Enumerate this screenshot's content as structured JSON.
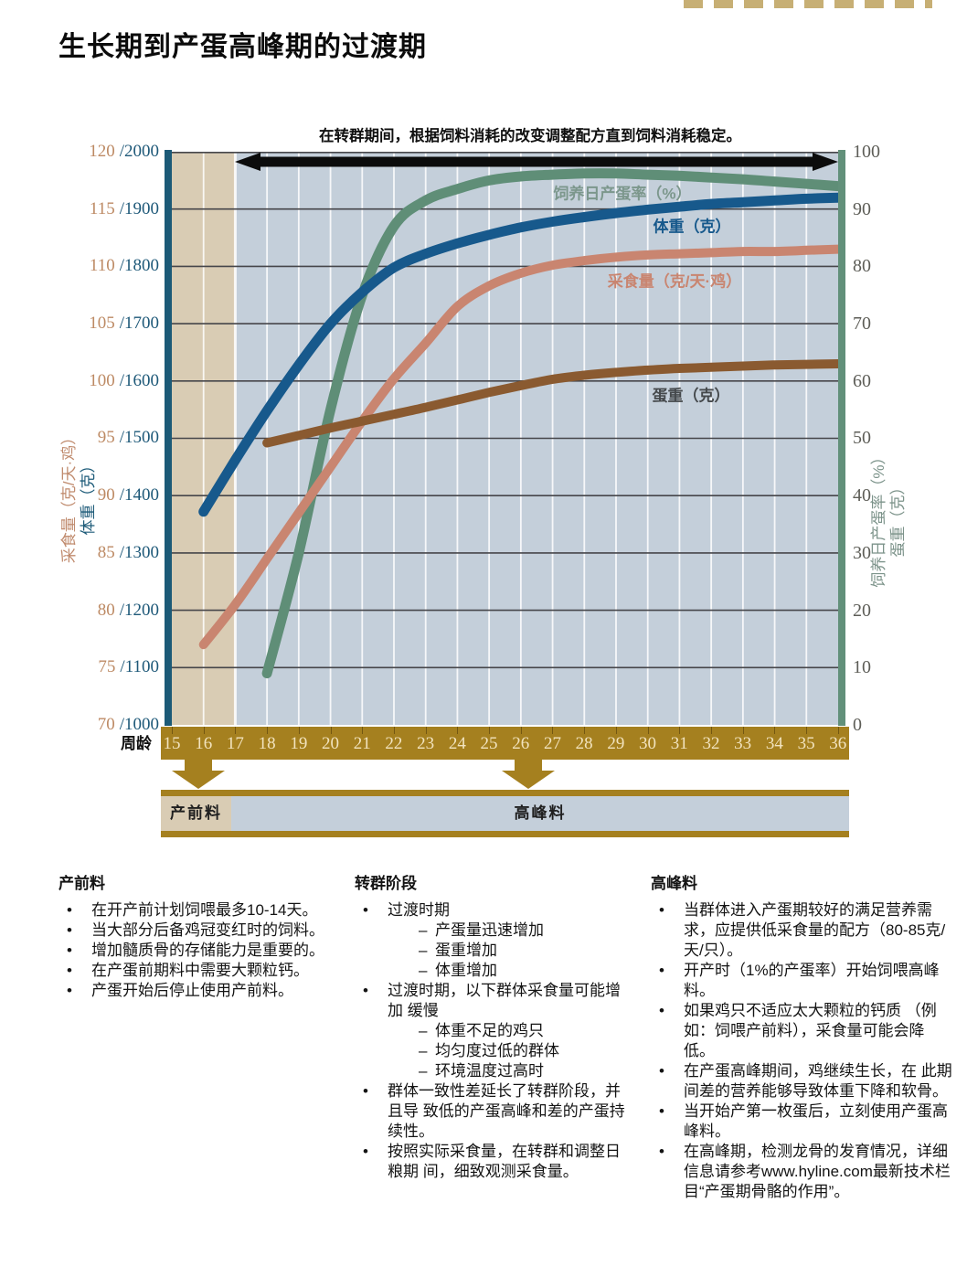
{
  "page": {
    "title": "生长期到产蛋高峰期的过渡期"
  },
  "chart": {
    "annotation": "在转群期间，根据饲料消耗的改变调整配方直到饲料消耗稳定。",
    "x_axis": {
      "label": "周龄"
    },
    "left_axis": {
      "title_feed": "采食量（克/天·鸡）",
      "title_weight": "体重（克）",
      "ticks": [
        {
          "feed": "120",
          "weight": "/2000"
        },
        {
          "feed": "115",
          "weight": "/1900"
        },
        {
          "feed": "110",
          "weight": "/1800"
        },
        {
          "feed": "105",
          "weight": "/1700"
        },
        {
          "feed": "100",
          "weight": "/1600"
        },
        {
          "feed": "95",
          "weight": "/1500"
        },
        {
          "feed": "90",
          "weight": "/1400"
        },
        {
          "feed": "85",
          "weight": "/1300"
        },
        {
          "feed": "80",
          "weight": "/1200"
        },
        {
          "feed": "75",
          "weight": "/1100"
        },
        {
          "feed": "70",
          "weight": "/1000"
        }
      ]
    },
    "right_axis": {
      "title_rate": "饲养日产蛋率（%）",
      "title_egg": "蛋重（克）"
    }
  },
  "chart_data": {
    "type": "line",
    "title": "在转群期间，根据饲料消耗的改变调整配方直到饲料消耗稳定。",
    "x_label": "周龄",
    "x_range": [
      15,
      36
    ],
    "x_ticks": [
      "15",
      "16",
      "17",
      "18",
      "19",
      "20",
      "21",
      "22",
      "23",
      "24",
      "25",
      "26",
      "27",
      "28",
      "29",
      "30",
      "31",
      "32",
      "33",
      "34",
      "35",
      "36"
    ],
    "right_axis": {
      "label": "饲养日产蛋率（%）／蛋重（克）",
      "range": [
        0,
        100
      ],
      "ticks": [
        "100",
        "90",
        "80",
        "70",
        "60",
        "50",
        "40",
        "30",
        "20",
        "10",
        "0"
      ]
    },
    "left_axis": {
      "label": "采食量（克/天·鸡）／体重（克）",
      "feed_range": [
        70,
        120
      ],
      "weight_range": [
        1000,
        2000
      ]
    },
    "grid": true,
    "bands": [
      {
        "label": "产前料",
        "from": 15,
        "to": 17,
        "color": "#d9ccb4"
      },
      {
        "label": "高峰料",
        "from": 17,
        "to": 36,
        "color": "#c4cfda"
      }
    ],
    "series": [
      {
        "name": "饲养日产蛋率（%）",
        "axis": "percent",
        "color": "#5f8e77",
        "width": 11,
        "x": [
          18,
          19,
          20,
          21,
          22,
          23,
          24,
          25,
          26,
          27,
          28,
          29,
          30,
          31,
          32,
          33,
          34,
          35,
          36
        ],
        "values": [
          9,
          30,
          55,
          75,
          87,
          91.5,
          93.5,
          95,
          95.7,
          96,
          96.2,
          96.2,
          96,
          95.8,
          95.5,
          95.2,
          94.8,
          94.4,
          94
        ]
      },
      {
        "name": "体重（克）",
        "axis": "weight",
        "color": "#17598c",
        "width": 11,
        "x": [
          16,
          17,
          18,
          19,
          20,
          21,
          22,
          23,
          24,
          25,
          26,
          27,
          28,
          29,
          30,
          31,
          32,
          33,
          34,
          35,
          36
        ],
        "values": [
          1372,
          1462,
          1548,
          1628,
          1700,
          1755,
          1798,
          1822,
          1840,
          1855,
          1868,
          1878,
          1886,
          1893,
          1899,
          1904,
          1909,
          1912,
          1915,
          1918,
          1920
        ]
      },
      {
        "name": "采食量（克/天·鸡）",
        "axis": "feed",
        "color": "#c98570",
        "width": 10,
        "x": [
          16,
          17,
          18,
          19,
          20,
          21,
          22,
          23,
          24,
          25,
          26,
          27,
          28,
          29,
          30,
          31,
          32,
          33,
          34,
          35,
          36
        ],
        "values": [
          77,
          80.5,
          84.5,
          88.5,
          92.5,
          96.5,
          100.2,
          103.3,
          106.5,
          108.3,
          109.4,
          110.1,
          110.5,
          110.8,
          111,
          111.1,
          111.2,
          111.3,
          111.3,
          111.4,
          111.5
        ]
      },
      {
        "name": "蛋重（克）",
        "axis": "percent",
        "color": "#8a5a30",
        "width": 10,
        "x": [
          18,
          19,
          20,
          21,
          22,
          23,
          24,
          25,
          26,
          27,
          28,
          29,
          30,
          31,
          32,
          33,
          34,
          35,
          36
        ],
        "values": [
          49.2,
          50.5,
          51.8,
          53,
          54.2,
          55.4,
          56.7,
          58,
          59.2,
          60.3,
          61,
          61.5,
          61.9,
          62.2,
          62.4,
          62.6,
          62.8,
          62.9,
          63
        ]
      }
    ]
  },
  "columns": [
    {
      "title": "产前料",
      "items": [
        {
          "text": "在开产前计划饲喂最多10-14天。",
          "subs": []
        },
        {
          "text": "当大部分后备鸡冠变红时的饲料。",
          "subs": []
        },
        {
          "text": "增加髓质骨的存储能力是重要的。",
          "subs": []
        },
        {
          "text": "在产蛋前期料中需要大颗粒钙。",
          "subs": []
        },
        {
          "text": "产蛋开始后停止使用产前料。",
          "subs": []
        }
      ]
    },
    {
      "title": "转群阶段",
      "items": [
        {
          "text": "过渡时期",
          "subs": [
            "产蛋量迅速增加",
            "蛋重增加",
            "体重增加"
          ]
        },
        {
          "text": "过渡时期，以下群体采食量可能增加 缓慢",
          "subs": [
            "体重不足的鸡只",
            "均匀度过低的群体",
            "环境温度过高时"
          ]
        },
        {
          "text": "群体一致性差延长了转群阶段，并且导 致低的产蛋高峰和差的产蛋持续性。",
          "subs": []
        },
        {
          "text": "按照实际采食量，在转群和调整日粮期 间，细致观测采食量。",
          "subs": []
        }
      ]
    },
    {
      "title": "高峰料",
      "items": [
        {
          "text": "当群体进入产蛋期较好的满足营养需求，应提供低采食量的配方（80-85克/天/只）。",
          "subs": []
        },
        {
          "text": "开产时（1%的产蛋率）开始饲喂高峰料。",
          "subs": []
        },
        {
          "text": "如果鸡只不适应太大颗粒的钙质 （例如：饲喂产前料），采食量可能会降低。",
          "subs": []
        },
        {
          "text": "在产蛋高峰期间，鸡继续生长，在 此期间差的营养能够导致体重下降和软骨。",
          "subs": []
        },
        {
          "text": "当开始产第一枚蛋后，立刻使用产蛋高峰料。",
          "subs": []
        },
        {
          "text": "在高峰期，检测龙骨的发育情况，详细信息请参考www.hyline.com最新技术栏目“产蛋期骨骼的作用”。",
          "subs": []
        }
      ]
    }
  ]
}
